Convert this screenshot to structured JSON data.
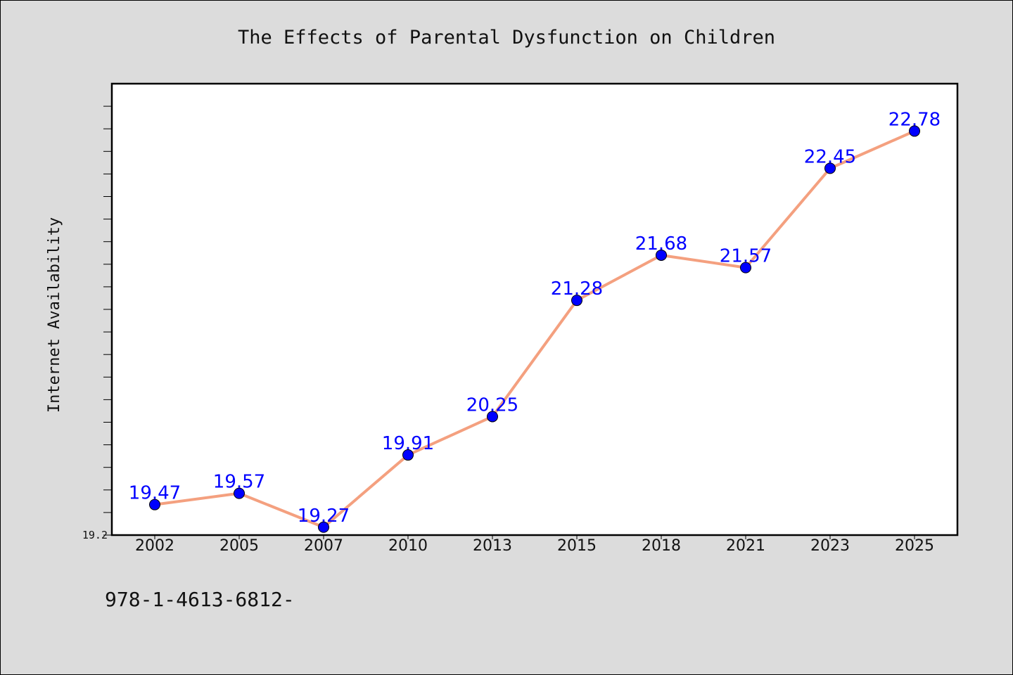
{
  "chart_data": {
    "type": "line",
    "title": "The Effects of Parental Dysfunction on Children",
    "xlabel": "",
    "ylabel": "Internet Availability",
    "categories": [
      "2002",
      "2005",
      "2007",
      "2010",
      "2013",
      "2015",
      "2018",
      "2021",
      "2023",
      "2025"
    ],
    "series": [
      {
        "values": [
          19.47,
          19.57,
          19.27,
          19.91,
          20.25,
          21.28,
          21.68,
          21.57,
          22.45,
          22.78
        ],
        "data_labels": [
          "19.47",
          "19.57",
          "19.27",
          "19.91",
          "20.25",
          "21.28",
          "21.68",
          "21.57",
          "22.45",
          "22.78"
        ]
      }
    ],
    "ylim": [
      19.2,
      23.2
    ],
    "ytick_labels": [
      "19.2"
    ],
    "grid": false,
    "line_color": "#f4a07f",
    "marker_color": "#0000ff",
    "label_color": "#0000ff",
    "plot_background": "#ffffff",
    "figure_background": "#dcdcdc"
  },
  "footer": {
    "text": "978-1-4613-6812-"
  }
}
